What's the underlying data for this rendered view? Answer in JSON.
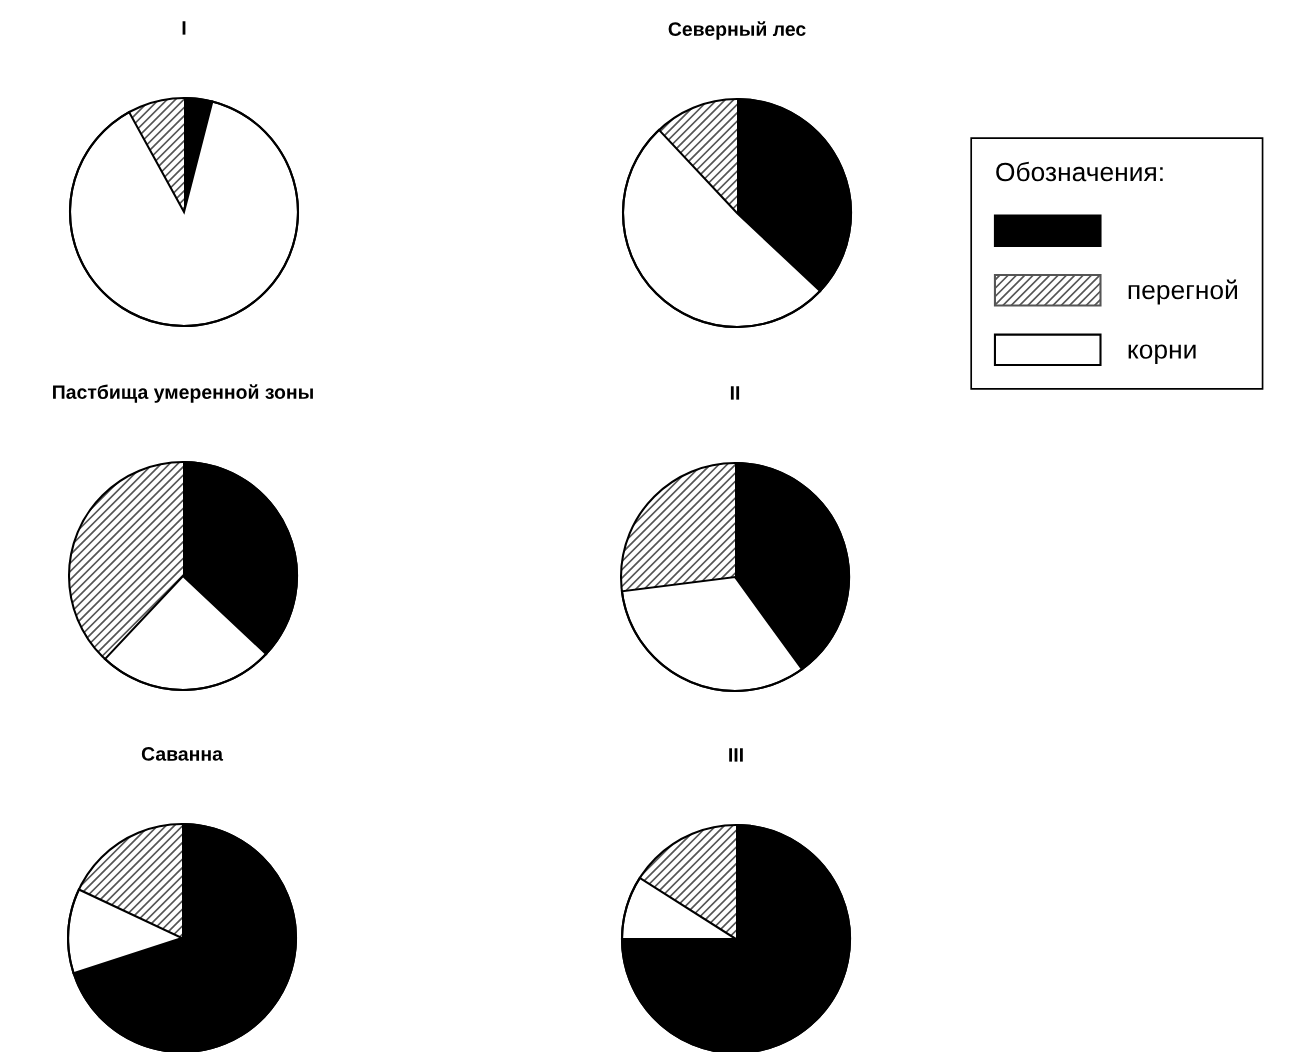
{
  "chart_data": [
    {
      "type": "pie",
      "title": "I",
      "categories": [
        null,
        "перегной",
        "корни"
      ],
      "values": [
        4,
        8,
        88
      ],
      "colors": [
        "#000000",
        "#555555",
        "#ffffff"
      ],
      "legend": "right",
      "legend_title": "Обозначения:"
    },
    {
      "type": "pie",
      "title": "Северный лес",
      "values": [
        37,
        12,
        51
      ],
      "colors": [
        "#000000",
        "#555555",
        "#ffffff"
      ]
    },
    {
      "type": "pie",
      "title": "Пастбища умеренной зоны",
      "values": [
        37,
        38,
        25
      ],
      "colors": [
        "#000000",
        "#555555",
        "#ffffff"
      ]
    },
    {
      "type": "pie",
      "title": "II",
      "values": [
        40,
        27,
        33
      ],
      "colors": [
        "#000000",
        "#555555",
        "#ffffff"
      ]
    },
    {
      "type": "pie",
      "title": "Саванна",
      "values": [
        70,
        18,
        12
      ],
      "colors": [
        "#000000",
        "#555555",
        "#ffffff"
      ]
    },
    {
      "type": "pie",
      "title": "III",
      "values": [
        75,
        16,
        9
      ],
      "colors": [
        "#000000",
        "#555555",
        "#ffffff"
      ]
    }
  ]
}
